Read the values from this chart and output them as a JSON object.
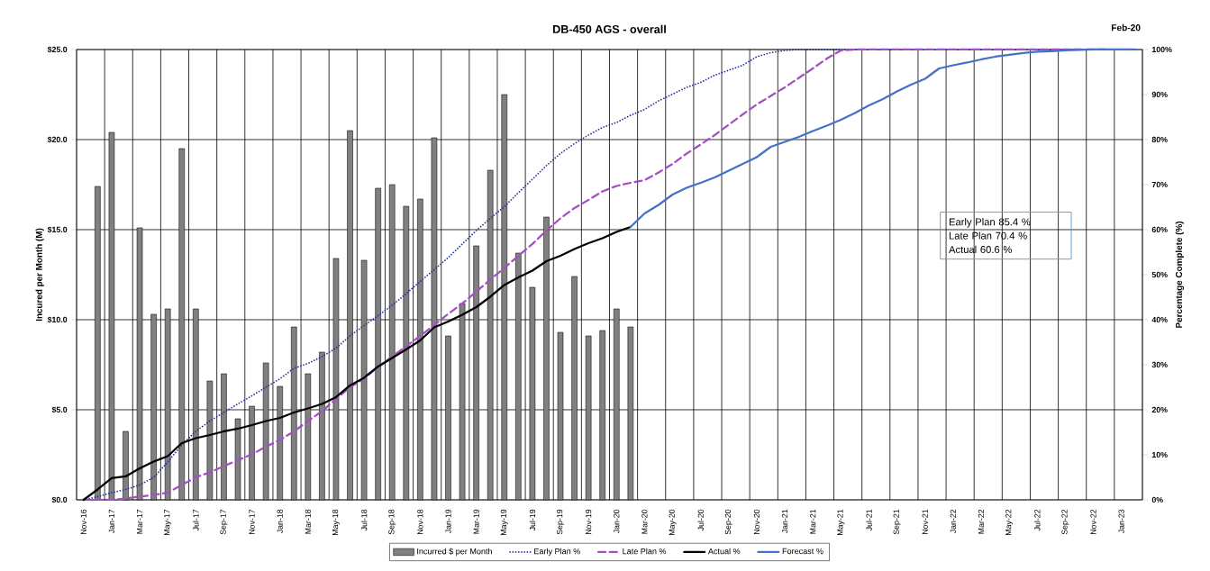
{
  "chart_data": {
    "type": "bar",
    "title": "DB-450 AGS - overall",
    "ylabel": "Incured per Month (M)",
    "y2label": "Percentage Complete (%)",
    "annotations": [
      "Feb-20",
      "Early Plan 85.4 %",
      "Late Plan 70.4 %",
      "Actual  60.6 %"
    ],
    "categories": [
      "Nov-16",
      null,
      "Jan-17",
      null,
      "Mar-17",
      null,
      "May-17",
      null,
      "Jul-17",
      null,
      "Sep-17",
      null,
      "Nov-17",
      null,
      "Jan-18",
      null,
      "Mar-18",
      null,
      "May-18",
      null,
      "Jul-18",
      null,
      "Sep-18",
      null,
      "Nov-18",
      null,
      "Jan-19",
      null,
      "Mar-19",
      null,
      "May-19",
      null,
      "Jul-19",
      null,
      "Sep-19",
      null,
      "Nov-19",
      null,
      "Jan-20",
      null,
      "Mar-20",
      null,
      "May-20",
      null,
      "Jul-20",
      null,
      "Sep-20",
      null,
      "Nov-20",
      null,
      "Jan-21",
      null,
      "Mar-21",
      null,
      "May-21",
      null,
      "Jul-21",
      null,
      "Sep-21",
      null,
      "Nov-21",
      null,
      "Jan-22",
      null,
      "Mar-22",
      null,
      "May-22",
      null,
      "Jul-22",
      null,
      "Sep-22",
      null,
      "Nov-22",
      null,
      "Jan-23",
      null
    ],
    "series": [
      {
        "name": "Incurred $ per Month",
        "color": "#808080",
        "values": [
          null,
          17.4,
          20.4,
          3.8,
          15.1,
          10.3,
          10.6,
          19.5,
          10.6,
          6.6,
          7.0,
          4.5,
          5.2,
          7.6,
          6.3,
          9.6,
          7.0,
          8.2,
          13.4,
          20.5,
          13.3,
          17.3,
          17.5,
          16.3,
          16.7,
          20.1,
          9.1,
          10.9,
          14.1,
          18.3,
          22.5,
          13.7,
          11.8,
          15.7,
          9.3,
          12.4,
          9.1,
          9.4,
          10.6,
          9.6,
          null,
          null,
          null,
          null,
          null,
          null,
          null,
          null,
          null,
          null,
          null,
          null,
          null,
          null,
          null,
          null,
          null,
          null,
          null,
          null,
          null,
          null,
          null,
          null,
          null,
          null,
          null,
          null,
          null,
          null,
          null,
          null,
          null,
          null,
          null,
          null
        ]
      },
      {
        "name": "Early Plan %",
        "type": "line",
        "axis": "y2",
        "color": "#1f2f9f",
        "line_style": "dotted",
        "values": [
          0,
          0.7,
          1.6,
          2.3,
          3.3,
          5.0,
          8.4,
          12.2,
          15.2,
          17.5,
          19.4,
          21.3,
          23.1,
          25.0,
          26.9,
          29.2,
          30.3,
          31.8,
          33.7,
          36.4,
          38.7,
          40.9,
          43.2,
          45.8,
          48.5,
          51.1,
          53.8,
          56.8,
          59.8,
          62.5,
          65.1,
          68.2,
          71.2,
          74.2,
          76.9,
          79.1,
          81.0,
          82.7,
          83.8,
          85.4,
          86.7,
          88.6,
          90.1,
          91.6,
          92.7,
          94.3,
          95.4,
          96.5,
          98.4,
          99.3,
          99.8,
          100,
          100,
          100,
          100,
          100,
          100,
          100,
          100,
          100,
          100,
          100,
          100,
          100,
          100,
          100,
          100,
          100,
          100,
          100,
          100,
          100,
          100,
          100,
          100,
          100
        ]
      },
      {
        "name": "Late Plan %",
        "type": "line",
        "axis": "y2",
        "color": "#a64ec4",
        "line_style": "dashed",
        "values": [
          0,
          0,
          0,
          0.3,
          0.7,
          1.1,
          1.6,
          3.3,
          5.0,
          6.1,
          7.5,
          8.8,
          10.1,
          11.8,
          13.3,
          15.2,
          17.5,
          19.7,
          22.4,
          25.0,
          26.9,
          29.5,
          31.8,
          34.1,
          36.4,
          38.8,
          41.3,
          43.6,
          46.2,
          48.9,
          51.5,
          54.2,
          56.8,
          59.8,
          62.5,
          64.8,
          66.6,
          68.5,
          69.7,
          70.4,
          71.0,
          72.7,
          74.6,
          76.9,
          78.9,
          81.0,
          83.3,
          85.6,
          87.8,
          89.7,
          91.6,
          93.7,
          95.8,
          98.0,
          99.8,
          100,
          100,
          100,
          100,
          100,
          100,
          100,
          100,
          100,
          100,
          100,
          100,
          100,
          100,
          100,
          100,
          100,
          100,
          100,
          null,
          null
        ]
      },
      {
        "name": "Actual %",
        "type": "line",
        "axis": "y2",
        "color": "#000000",
        "line_style": "solid",
        "values": [
          0,
          2.3,
          4.8,
          5.2,
          7.0,
          8.5,
          9.7,
          12.6,
          13.7,
          14.4,
          15.2,
          15.8,
          16.6,
          17.5,
          18.2,
          19.4,
          20.3,
          21.3,
          22.8,
          25.4,
          27.1,
          29.6,
          31.5,
          33.4,
          35.4,
          38.3,
          39.6,
          41.1,
          42.8,
          45.1,
          47.7,
          49.4,
          50.9,
          53.0,
          54.2,
          55.7,
          57.0,
          58.1,
          59.5,
          60.6,
          null,
          null,
          null,
          null,
          null,
          null,
          null,
          null,
          null,
          null,
          null,
          null,
          null,
          null,
          null,
          null,
          null,
          null,
          null,
          null,
          null,
          null,
          null,
          null,
          null,
          null,
          null,
          null,
          null,
          null,
          null,
          null,
          null,
          null,
          null,
          null
        ]
      },
      {
        "name": "Forecast %",
        "type": "line",
        "axis": "y2",
        "color": "#4472c4",
        "line_style": "solid",
        "values": [
          null,
          null,
          null,
          null,
          null,
          null,
          null,
          null,
          null,
          null,
          null,
          null,
          null,
          null,
          null,
          null,
          null,
          null,
          null,
          null,
          null,
          null,
          null,
          null,
          null,
          null,
          null,
          null,
          null,
          null,
          null,
          null,
          null,
          null,
          null,
          null,
          null,
          null,
          null,
          60.6,
          63.6,
          65.5,
          67.8,
          69.3,
          70.4,
          71.6,
          73.1,
          74.6,
          76.1,
          78.4,
          79.5,
          80.6,
          81.9,
          83.1,
          84.4,
          85.9,
          87.6,
          89.0,
          90.7,
          92.2,
          93.5,
          95.8,
          96.5,
          97.1,
          97.8,
          98.4,
          98.8,
          99.2,
          99.5,
          99.6,
          99.8,
          99.9,
          100,
          100,
          100,
          100
        ]
      }
    ],
    "ylim": [
      0,
      25
    ],
    "yticks": [
      {
        "value": 0,
        "label": "$0.0"
      },
      {
        "value": 5,
        "label": "$5.0"
      },
      {
        "value": 10,
        "label": "$10.0"
      },
      {
        "value": 15,
        "label": "$15.0"
      },
      {
        "value": 20,
        "label": "$20.0"
      },
      {
        "value": 25,
        "label": "$25.0"
      }
    ],
    "y2lim": [
      0,
      100
    ],
    "y2ticks": [
      {
        "value": 0,
        "label": "0%"
      },
      {
        "value": 10,
        "label": "10%"
      },
      {
        "value": 20,
        "label": "20%"
      },
      {
        "value": 30,
        "label": "30%"
      },
      {
        "value": 40,
        "label": "40%"
      },
      {
        "value": 50,
        "label": "50%"
      },
      {
        "value": 60,
        "label": "60%"
      },
      {
        "value": 70,
        "label": "70%"
      },
      {
        "value": 80,
        "label": "80%"
      },
      {
        "value": 90,
        "label": "90%"
      },
      {
        "value": 100,
        "label": "100%"
      }
    ],
    "grid": true,
    "legend": "bottom"
  }
}
